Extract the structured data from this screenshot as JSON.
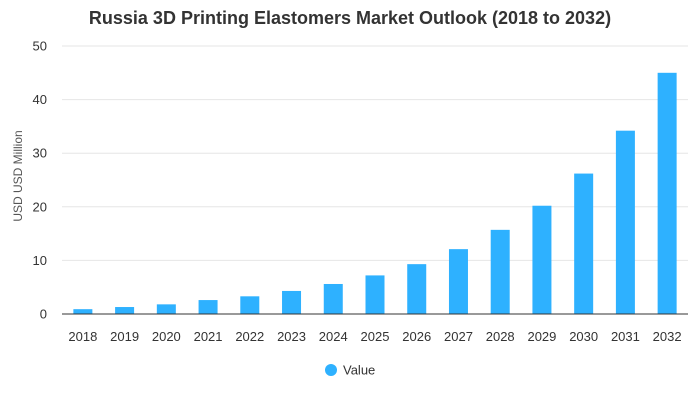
{
  "chart_data": {
    "type": "bar",
    "title": "Russia 3D Printing Elastomers Market Outlook (2018 to 2032)",
    "xlabel": "",
    "ylabel": "USD USD Million",
    "categories": [
      "2018",
      "2019",
      "2020",
      "2021",
      "2022",
      "2023",
      "2024",
      "2025",
      "2026",
      "2027",
      "2028",
      "2029",
      "2030",
      "2031",
      "2032"
    ],
    "series": [
      {
        "name": "Value",
        "color": "#2EB1FF",
        "values": [
          0.9,
          1.3,
          1.8,
          2.6,
          3.3,
          4.3,
          5.6,
          7.2,
          9.3,
          12.1,
          15.7,
          20.2,
          26.2,
          34.2,
          45.0
        ]
      }
    ],
    "ylim": [
      0,
      50
    ],
    "yticks": [
      0,
      10,
      20,
      30,
      40,
      50
    ],
    "grid": true,
    "legend_position": "bottom"
  }
}
